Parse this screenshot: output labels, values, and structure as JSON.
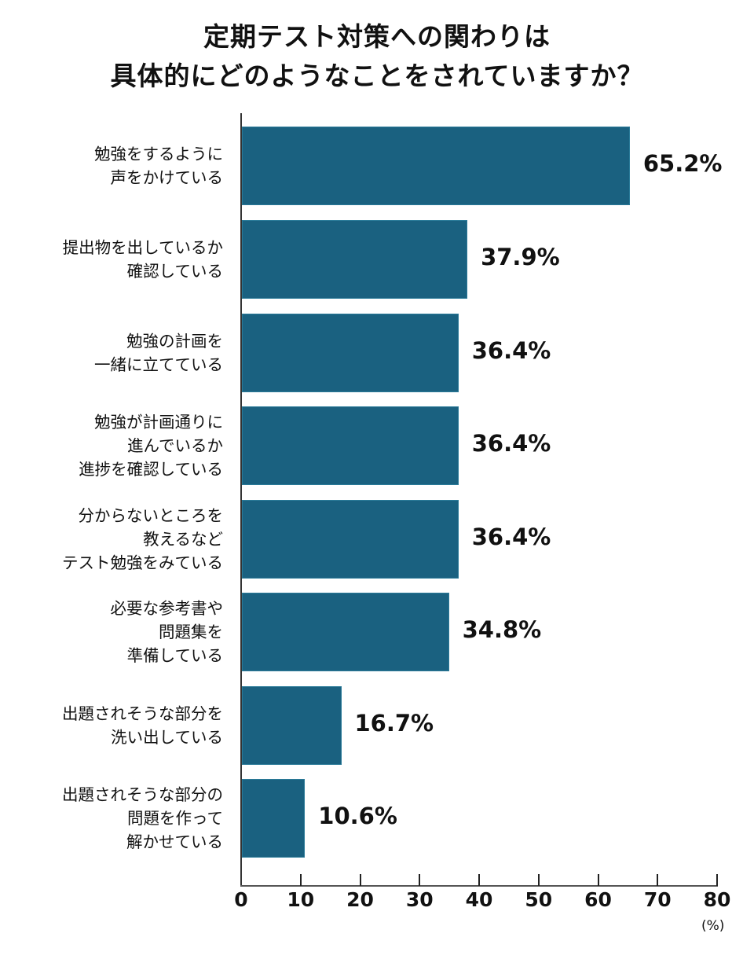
{
  "title": {
    "line1": "定期テスト対策への関わりは",
    "line2": "具体的にどのようなことをされていますか？"
  },
  "axis": {
    "ticks": [
      "0",
      "10",
      "20",
      "30",
      "40",
      "50",
      "60",
      "70",
      "80"
    ],
    "unit": "(%)"
  },
  "bars": [
    {
      "lines": [
        "勉強をするように",
        "声をかけている"
      ],
      "value": 65.2,
      "label": "65.2%"
    },
    {
      "lines": [
        "提出物を出しているか",
        "確認している"
      ],
      "value": 37.9,
      "label": "37.9%"
    },
    {
      "lines": [
        "勉強の計画を",
        "一緒に立てている"
      ],
      "value": 36.4,
      "label": "36.4%"
    },
    {
      "lines": [
        "勉強が計画通りに",
        "進んでいるか",
        "進捗を確認している"
      ],
      "value": 36.4,
      "label": "36.4%"
    },
    {
      "lines": [
        "分からないところを",
        "教えるなど",
        "テスト勉強をみている"
      ],
      "value": 36.4,
      "label": "36.4%"
    },
    {
      "lines": [
        "必要な参考書や",
        "問題集を",
        "準備している"
      ],
      "value": 34.8,
      "label": "34.8%"
    },
    {
      "lines": [
        "出題されそうな部分を",
        "洗い出している"
      ],
      "value": 16.7,
      "label": "16.7%"
    },
    {
      "lines": [
        "出題されそうな部分の",
        "問題を作って",
        "解かせている"
      ],
      "value": 10.6,
      "label": "10.6%"
    }
  ],
  "colors": {
    "bar": "#1a6180",
    "text": "#111111",
    "axis": "#333333"
  },
  "chart_data": {
    "type": "bar",
    "orientation": "horizontal",
    "title": "定期テスト対策への関わりは具体的にどのようなことをされていますか？",
    "categories": [
      "勉強をするように声をかけている",
      "提出物を出しているか確認している",
      "勉強の計画を一緒に立てている",
      "勉強が計画通りに進んでいるか進捗を確認している",
      "分からないところを教えるなどテスト勉強をみている",
      "必要な参考書や問題集を準備している",
      "出題されそうな部分を洗い出している",
      "出題されそうな部分の問題を作って解かせている"
    ],
    "values": [
      65.2,
      37.9,
      36.4,
      36.4,
      36.4,
      34.8,
      16.7,
      10.6
    ],
    "data_labels": [
      "65.2%",
      "37.9%",
      "36.4%",
      "36.4%",
      "36.4%",
      "34.8%",
      "16.7%",
      "10.6%"
    ],
    "xlabel": "(%)",
    "ylabel": "",
    "xlim": [
      0,
      80
    ],
    "xticks": [
      0,
      10,
      20,
      30,
      40,
      50,
      60,
      70,
      80
    ],
    "grid": false,
    "legend": null
  }
}
